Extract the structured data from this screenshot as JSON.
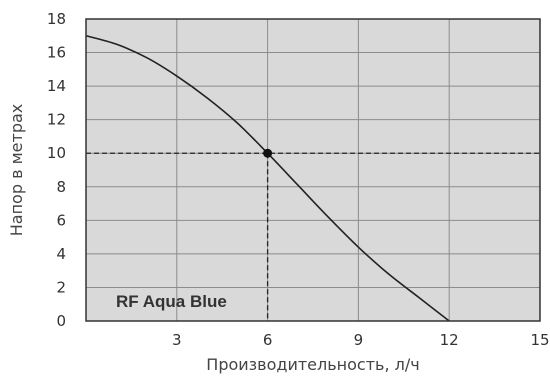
{
  "chart_data": {
    "type": "line",
    "xlabel": "Производительность, л/ч",
    "ylabel": "Напор в метрах",
    "xlim": [
      0,
      15
    ],
    "ylim": [
      0,
      18
    ],
    "x_ticks": [
      3,
      6,
      9,
      12,
      15
    ],
    "y_ticks": [
      0,
      2,
      4,
      6,
      8,
      10,
      12,
      14,
      16,
      18
    ],
    "grid": true,
    "background_color": "#d9d9d9",
    "series": [
      {
        "name": "RF Aqua Blue",
        "color": "#222222",
        "x": [
          0,
          1,
          2,
          3,
          4,
          5,
          6,
          7,
          8,
          9,
          10,
          11,
          12
        ],
        "y": [
          17.0,
          16.5,
          15.7,
          14.6,
          13.3,
          11.8,
          10.0,
          8.1,
          6.2,
          4.4,
          2.8,
          1.4,
          0.0
        ]
      }
    ],
    "marker_point": {
      "x": 6,
      "y": 10
    },
    "reference_lines": {
      "x": 6,
      "y": 10
    }
  }
}
